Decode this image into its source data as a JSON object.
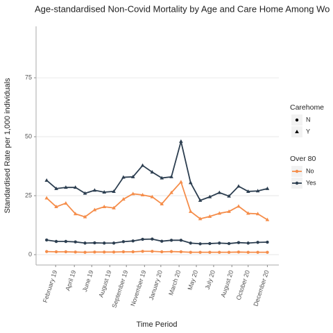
{
  "chart_data": {
    "type": "line",
    "title": "Age-standardised Non-Covid Mortality by Age and Care Home Among Wo",
    "x_label": "Time Period",
    "y_label": "Standardised Rate per 1,000 individuals",
    "x": [
      0,
      1,
      2,
      3,
      4,
      5,
      6,
      7,
      8,
      9,
      10,
      11,
      12,
      13,
      14,
      15,
      16,
      17,
      18,
      19,
      20,
      21,
      22,
      23
    ],
    "xlim": [
      -1.1,
      24.2
    ],
    "xticks": [
      {
        "value": 0.94,
        "label": "February 19"
      },
      {
        "value": 2.89,
        "label": "April 19"
      },
      {
        "value": 4.7,
        "label": "June 19"
      },
      {
        "value": 6.58,
        "label": "August 19"
      },
      {
        "value": 8.31,
        "label": "September 19"
      },
      {
        "value": 10.2,
        "label": "November 19"
      },
      {
        "value": 11.9,
        "label": "January 20"
      },
      {
        "value": 13.8,
        "label": "March 20"
      },
      {
        "value": 15.6,
        "label": "May 20"
      },
      {
        "value": 17.4,
        "label": "July 20"
      },
      {
        "value": 19.3,
        "label": "August 20"
      },
      {
        "value": 21.0,
        "label": "October 20"
      },
      {
        "value": 23.0,
        "label": "December 20"
      }
    ],
    "ylim": [
      -4.4,
      96.8
    ],
    "yticks": [
      0,
      25,
      50,
      75
    ],
    "grid": true,
    "series": [
      {
        "color": "#2c3e50",
        "marker": "triangle",
        "values": [
          31.5,
          28,
          28.5,
          28.5,
          26,
          27.3,
          26.5,
          26.8,
          32.8,
          33,
          37.8,
          35,
          32.5,
          33,
          48,
          30.5,
          23,
          24.5,
          26.3,
          24.8,
          29,
          26.8,
          27,
          28
        ]
      },
      {
        "color": "#f58d4a",
        "marker": "triangle",
        "values": [
          24,
          20.3,
          21.8,
          17.3,
          16,
          19,
          20.3,
          19.8,
          23.5,
          25.8,
          25.3,
          24.5,
          21.5,
          26.3,
          30.8,
          18.3,
          15.2,
          16.2,
          17.5,
          18.3,
          20.5,
          17.5,
          17.3,
          14.8
        ]
      },
      {
        "color": "#2c3e50",
        "marker": "circle",
        "values": [
          6.2,
          5.6,
          5.6,
          5.4,
          4.9,
          5,
          4.9,
          4.9,
          5.5,
          5.8,
          6.5,
          6.6,
          5.7,
          6.1,
          6.1,
          4.9,
          4.6,
          4.7,
          4.9,
          4.7,
          5.1,
          4.9,
          5.2,
          5.3
        ]
      },
      {
        "color": "#f58d4a",
        "marker": "circle",
        "values": [
          1.3,
          1.2,
          1.2,
          1.1,
          1.0,
          1.1,
          1.1,
          1.1,
          1.2,
          1.2,
          1.4,
          1.4,
          1.2,
          1.3,
          1.2,
          1.0,
          1.0,
          1.0,
          1.0,
          1.0,
          1.1,
          1.0,
          1.0,
          1.0
        ]
      }
    ],
    "legends": [
      {
        "title": "Carehome",
        "entries": [
          {
            "label": "N",
            "marker": "circle"
          },
          {
            "label": "Y",
            "marker": "triangle"
          }
        ]
      },
      {
        "title": "Over 80",
        "entries": [
          {
            "label": "No",
            "color": "#f58d4a"
          },
          {
            "label": "Yes",
            "color": "#2c3e50"
          }
        ]
      }
    ]
  }
}
